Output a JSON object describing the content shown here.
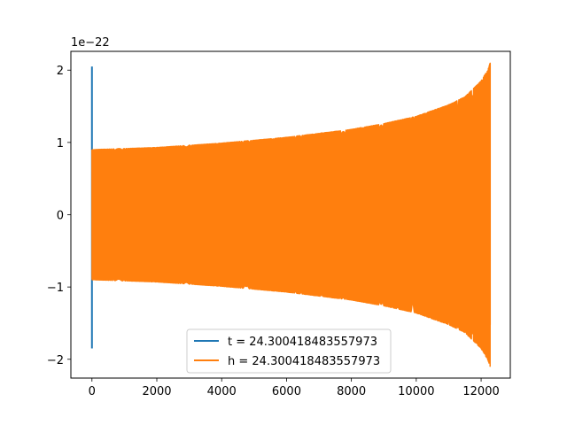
{
  "chart_data": {
    "type": "line",
    "title": "",
    "xlabel": "",
    "ylabel": "",
    "y_offset_label": "1e−22",
    "xlim": [
      -650,
      12900
    ],
    "ylim": [
      -2.26,
      2.26
    ],
    "x_ticks": [
      0,
      2000,
      4000,
      6000,
      8000,
      10000,
      12000
    ],
    "x_tick_labels": [
      "0",
      "2000",
      "4000",
      "6000",
      "8000",
      "10000",
      "12000"
    ],
    "y_ticks": [
      -2,
      -1,
      0,
      1,
      2
    ],
    "y_tick_labels": [
      "−2",
      "−1",
      "0",
      "1",
      "2"
    ],
    "grid": false,
    "legend_location": "lower center",
    "series": [
      {
        "name": "t = 24.300418483557973",
        "color": "#1f77b4",
        "shape": "spike",
        "x": [
          0,
          0
        ],
        "y": [
          2.05,
          -1.85
        ]
      },
      {
        "name": "h = 24.300418483557973",
        "color": "#ff7f0e",
        "shape": "chirp",
        "x_start": 0,
        "x_end": 12280,
        "envelope": {
          "x": [
            0,
            2000,
            4000,
            6000,
            8000,
            9000,
            10000,
            11000,
            11500,
            12000,
            12200,
            12280
          ],
          "y": [
            0.9,
            0.93,
            0.99,
            1.07,
            1.18,
            1.26,
            1.36,
            1.52,
            1.63,
            1.85,
            2.0,
            2.1
          ]
        }
      }
    ]
  }
}
